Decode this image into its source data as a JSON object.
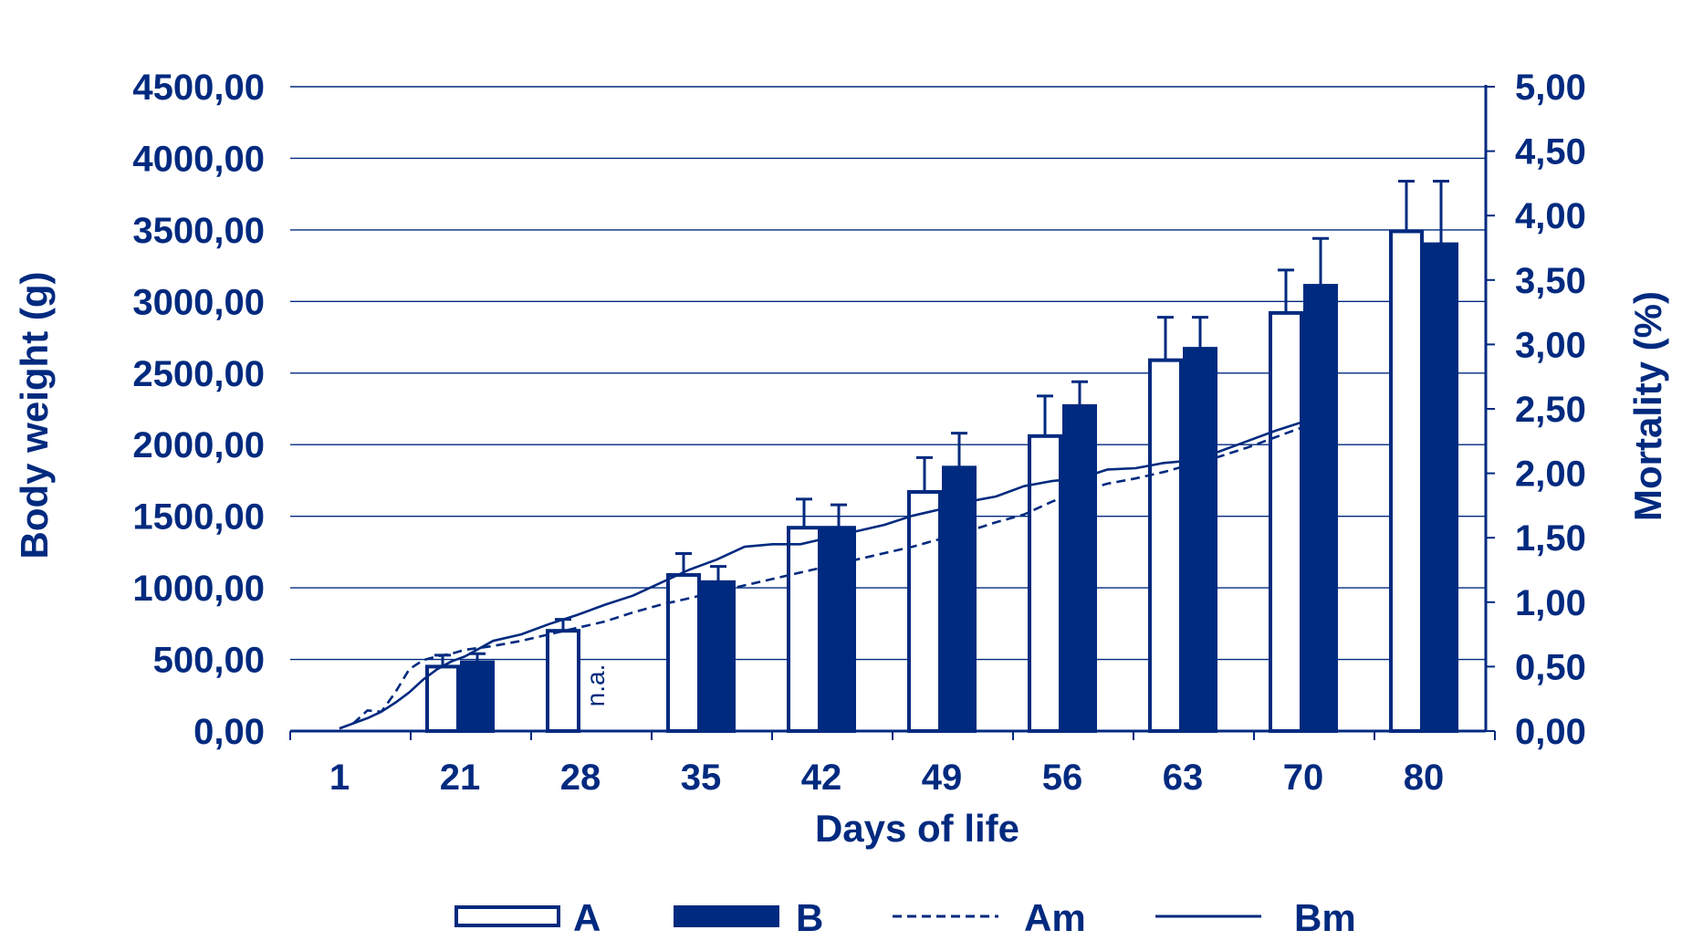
{
  "colors": {
    "primary": "#002a7f",
    "grid": "#002a7f",
    "background": "#ffffff"
  },
  "chart_data": {
    "type": "bar",
    "xlabel": "Days of life",
    "ylabel": "Body weight (g)",
    "y2label": "Mortality (%)",
    "categories": [
      "1",
      "21",
      "28",
      "35",
      "42",
      "49",
      "56",
      "63",
      "70",
      "80"
    ],
    "ylim": [
      0,
      4500
    ],
    "y2lim": [
      0,
      5
    ],
    "y_ticks": [
      "0,00",
      "500,00",
      "1000,00",
      "1500,00",
      "2000,00",
      "2500,00",
      "3000,00",
      "3500,00",
      "4000,00",
      "4500,00"
    ],
    "y2_ticks": [
      "0,00",
      "0,50",
      "1,00",
      "1,50",
      "2,00",
      "2,50",
      "3,00",
      "3,50",
      "4,00",
      "4,50",
      "5,00"
    ],
    "grid": true,
    "legend_position": "bottom",
    "na_label": "n.a.",
    "series": [
      {
        "name": "A",
        "kind": "bar",
        "fill": "hollow",
        "values": [
          null,
          450,
          700,
          1090,
          1420,
          1670,
          2060,
          2590,
          2920,
          3490
        ],
        "errors": [
          null,
          80,
          80,
          150,
          200,
          240,
          280,
          300,
          300,
          350
        ]
      },
      {
        "name": "B",
        "kind": "bar",
        "fill": "solid",
        "values": [
          null,
          480,
          null,
          1040,
          1420,
          1840,
          2270,
          2670,
          3110,
          3400
        ],
        "errors": [
          null,
          60,
          null,
          110,
          160,
          240,
          170,
          220,
          330,
          440
        ]
      },
      {
        "name": "Am",
        "kind": "line",
        "dash": "dashed",
        "axis": "right",
        "x": [
          1,
          2,
          3,
          4,
          5,
          6,
          7,
          8,
          9,
          10,
          12,
          14,
          16,
          18,
          20,
          22,
          24,
          26,
          28,
          30,
          32,
          34,
          36,
          38,
          40,
          42,
          44,
          46,
          48,
          50,
          52,
          54,
          56,
          58,
          60,
          62,
          64,
          66,
          68,
          70
        ],
        "y": [
          0.02,
          0.06,
          0.16,
          0.15,
          0.3,
          0.48,
          0.55,
          0.58,
          0.6,
          0.63,
          0.66,
          0.7,
          0.75,
          0.8,
          0.85,
          0.92,
          0.98,
          1.03,
          1.08,
          1.13,
          1.18,
          1.23,
          1.28,
          1.33,
          1.38,
          1.43,
          1.49,
          1.55,
          1.62,
          1.68,
          1.78,
          1.86,
          1.92,
          1.96,
          2.01,
          2.07,
          2.13,
          2.2,
          2.28,
          2.36
        ]
      },
      {
        "name": "Bm",
        "kind": "line",
        "dash": "solid",
        "axis": "right",
        "x": [
          1,
          2,
          3,
          4,
          5,
          6,
          7,
          8,
          9,
          10,
          12,
          14,
          16,
          18,
          20,
          22,
          24,
          26,
          28,
          30,
          32,
          34,
          36,
          38,
          40,
          42,
          44,
          46,
          48,
          50,
          52,
          54,
          56,
          58,
          60,
          62,
          64,
          66,
          68,
          70
        ],
        "y": [
          0.02,
          0.06,
          0.1,
          0.15,
          0.22,
          0.3,
          0.4,
          0.48,
          0.54,
          0.58,
          0.7,
          0.75,
          0.83,
          0.9,
          0.98,
          1.05,
          1.15,
          1.25,
          1.33,
          1.43,
          1.45,
          1.45,
          1.5,
          1.55,
          1.6,
          1.67,
          1.72,
          1.78,
          1.82,
          1.9,
          1.94,
          1.96,
          2.03,
          2.04,
          2.08,
          2.1,
          2.17,
          2.25,
          2.33,
          2.4
        ]
      }
    ]
  }
}
